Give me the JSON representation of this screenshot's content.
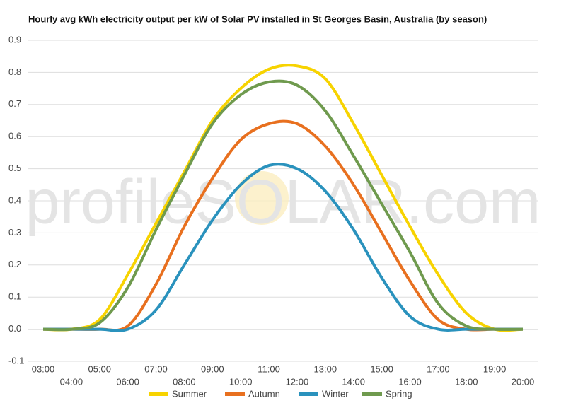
{
  "chart_data": {
    "type": "line",
    "title": "Hourly avg kWh electricity output per kW of Solar PV installed in St Georges Basin, Australia (by season)",
    "watermark": "profileSOLAR.com",
    "categories": [
      "03:00",
      "04:00",
      "05:00",
      "06:00",
      "07:00",
      "08:00",
      "09:00",
      "10:00",
      "11:00",
      "12:00",
      "13:00",
      "14:00",
      "15:00",
      "16:00",
      "17:00",
      "18:00",
      "19:00",
      "20:00"
    ],
    "series": [
      {
        "name": "Summer",
        "color": "#f7d300",
        "values": [
          0,
          0,
          0.03,
          0.17,
          0.33,
          0.49,
          0.65,
          0.75,
          0.81,
          0.82,
          0.78,
          0.64,
          0.48,
          0.32,
          0.17,
          0.05,
          0,
          0
        ]
      },
      {
        "name": "Autumn",
        "color": "#e8701f",
        "values": [
          0,
          0,
          0,
          0.01,
          0.14,
          0.32,
          0.47,
          0.59,
          0.64,
          0.64,
          0.57,
          0.45,
          0.3,
          0.15,
          0.03,
          0,
          0,
          0
        ]
      },
      {
        "name": "Winter",
        "color": "#2a92bd",
        "values": [
          0,
          0,
          0,
          0,
          0.06,
          0.2,
          0.34,
          0.45,
          0.51,
          0.5,
          0.43,
          0.31,
          0.16,
          0.04,
          0,
          0,
          0,
          0
        ]
      },
      {
        "name": "Spring",
        "color": "#6f9a4e",
        "values": [
          0,
          0,
          0.02,
          0.13,
          0.31,
          0.48,
          0.64,
          0.73,
          0.77,
          0.76,
          0.68,
          0.54,
          0.39,
          0.24,
          0.08,
          0.01,
          0,
          0
        ]
      }
    ],
    "ylim": [
      -0.1,
      0.9
    ],
    "yticks": [
      -0.1,
      {
        "value": 0,
        "label": "0.0"
      },
      0.1,
      0.2,
      0.3,
      0.4,
      0.5,
      0.6,
      0.7,
      0.8,
      0.9
    ],
    "grid": true
  }
}
